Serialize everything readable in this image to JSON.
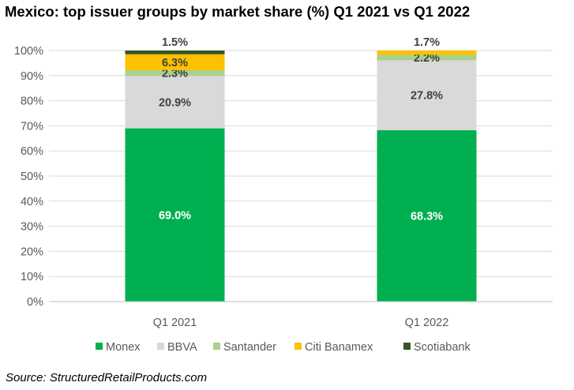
{
  "title": "Mexico: top issuer groups by market share (%) Q1 2021 vs Q1 2022",
  "source": "Source: StructuredRetailProducts.com",
  "chart_data": {
    "type": "bar",
    "stacked": true,
    "categories": [
      "Q1 2021",
      "Q1 2022"
    ],
    "series": [
      {
        "name": "Monex",
        "color": "#00b050",
        "values": [
          69.0,
          68.3
        ],
        "labels": [
          "69.0%",
          "68.3%"
        ]
      },
      {
        "name": "BBVA",
        "color": "#d9d9d9",
        "values": [
          20.9,
          27.8
        ],
        "labels": [
          "20.9%",
          "27.8%"
        ]
      },
      {
        "name": "Santander",
        "color": "#a9d18e",
        "values": [
          2.3,
          2.2
        ],
        "labels": [
          "2.3%",
          "2.2%"
        ]
      },
      {
        "name": "Citi Banamex",
        "color": "#ffc000",
        "values": [
          6.3,
          1.7
        ],
        "labels": [
          "6.3%",
          "1.7%"
        ]
      },
      {
        "name": "Scotiabank",
        "color": "#375623",
        "values": [
          1.5,
          0.0
        ],
        "labels": [
          "1.5%",
          ""
        ]
      }
    ],
    "ylim": [
      0,
      100
    ],
    "yticks": [
      "0%",
      "10%",
      "20%",
      "30%",
      "40%",
      "50%",
      "60%",
      "70%",
      "80%",
      "90%",
      "100%"
    ],
    "grid": true,
    "legend_position": "bottom"
  }
}
